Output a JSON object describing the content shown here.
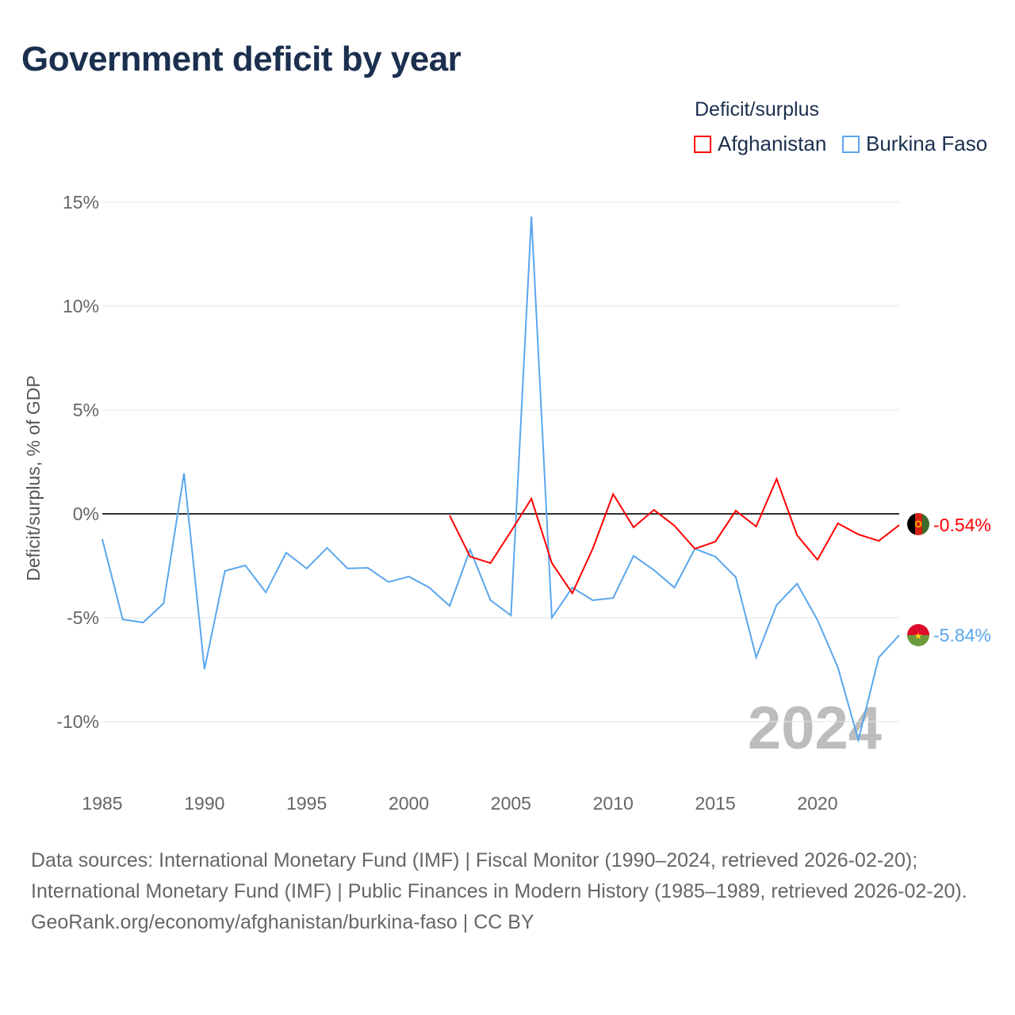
{
  "title": "Government deficit by year",
  "legend": {
    "title": "Deficit/surplus",
    "items": [
      {
        "label": "Afghanistan",
        "color": "#ff0000"
      },
      {
        "label": "Burkina Faso",
        "color": "#5aa6ed"
      }
    ]
  },
  "watermark_year": "2024",
  "footer": {
    "sources": "Data sources: International Monetary Fund (IMF) | Fiscal Monitor (1990–2024, retrieved 2026-02-20); International Monetary Fund (IMF) | Public Finances in Modern History (1985–1989, retrieved 2026-02-20).",
    "credit": "GeoRank.org/economy/afghanistan/burkina-faso | CC BY"
  },
  "chart_data": {
    "type": "line",
    "title": "Government deficit by year",
    "ylabel": "Deficit/surplus, % of GDP",
    "xlabel": "",
    "xlim": [
      1985,
      2024
    ],
    "ylim": [
      -10,
      15
    ],
    "grid": true,
    "legend_position": "top-right",
    "x_ticks": [
      {
        "v": 1985,
        "label": "1985"
      },
      {
        "v": 1990,
        "label": "1990"
      },
      {
        "v": 1995,
        "label": "1995"
      },
      {
        "v": 2000,
        "label": "2000"
      },
      {
        "v": 2005,
        "label": "2005"
      },
      {
        "v": 2010,
        "label": "2010"
      },
      {
        "v": 2015,
        "label": "2015"
      },
      {
        "v": 2020,
        "label": "2020"
      }
    ],
    "y_ticks": [
      {
        "v": 15,
        "label": "15%"
      },
      {
        "v": 10,
        "label": "10%"
      },
      {
        "v": 5,
        "label": "5%"
      },
      {
        "v": 0,
        "label": "0%"
      },
      {
        "v": -5,
        "label": "-5%"
      },
      {
        "v": -10,
        "label": "-10%"
      }
    ],
    "series": [
      {
        "name": "Afghanistan",
        "color": "#ff0000",
        "end_label": "-0.54%",
        "x": [
          2002,
          2003,
          2004,
          2005,
          2006,
          2007,
          2008,
          2009,
          2010,
          2011,
          2012,
          2013,
          2014,
          2015,
          2016,
          2017,
          2018,
          2019,
          2020,
          2021,
          2022,
          2023,
          2024
        ],
        "values": [
          -0.08,
          -2.06,
          -2.37,
          -0.84,
          0.73,
          -2.37,
          -3.82,
          -1.68,
          0.95,
          -0.65,
          0.19,
          -0.57,
          -1.68,
          -1.34,
          0.15,
          -0.61,
          1.68,
          -1.03,
          -2.21,
          -0.46,
          -0.99,
          -1.3,
          -0.54
        ]
      },
      {
        "name": "Burkina Faso",
        "color": "#5aa6ed",
        "end_label": "-5.84%",
        "x": [
          1985,
          1986,
          1987,
          1988,
          1989,
          1990,
          1991,
          1992,
          1993,
          1994,
          1995,
          1996,
          1997,
          1998,
          1999,
          2000,
          2001,
          2002,
          2003,
          2004,
          2005,
          2006,
          2007,
          2008,
          2009,
          2010,
          2011,
          2012,
          2013,
          2014,
          2015,
          2016,
          2017,
          2018,
          2019,
          2020,
          2021,
          2022,
          2023,
          2024
        ],
        "values": [
          -1.22,
          -5.08,
          -5.23,
          -4.31,
          1.95,
          -7.48,
          -2.75,
          -2.48,
          -3.78,
          -1.87,
          -2.63,
          -1.64,
          -2.63,
          -2.6,
          -3.28,
          -3.02,
          -3.55,
          -4.43,
          -1.72,
          -4.16,
          -4.89,
          14.31,
          -5.0,
          -3.55,
          -4.16,
          -4.05,
          -2.02,
          -2.71,
          -3.55,
          -1.68,
          -2.06,
          -3.05,
          -6.91,
          -4.39,
          -3.36,
          -5.11,
          -7.4,
          -10.88,
          -6.91,
          -5.84
        ]
      }
    ]
  }
}
